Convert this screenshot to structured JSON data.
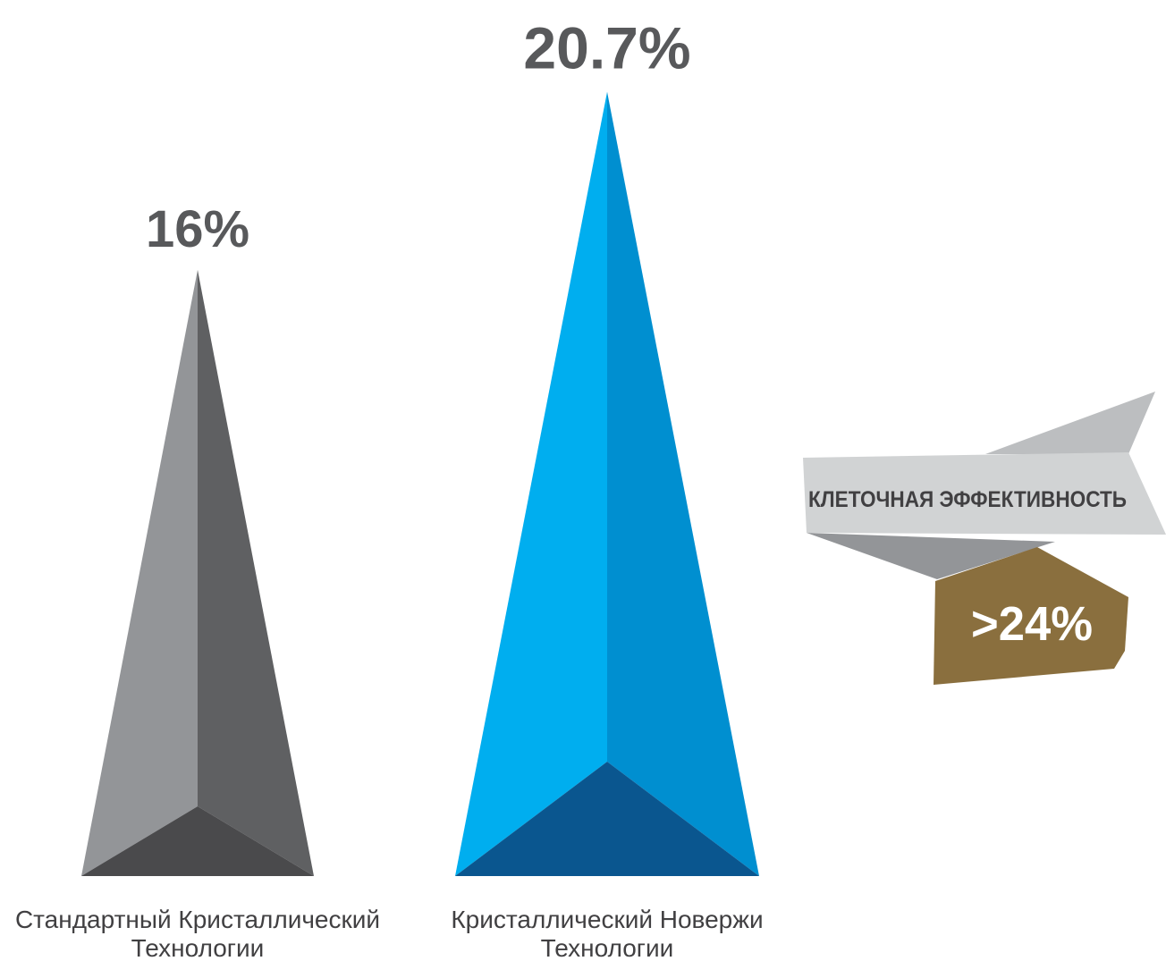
{
  "chart_data": {
    "type": "bar",
    "categories": [
      [
        "Стандартный Кристаллический",
        "Технологии"
      ],
      [
        "Кристаллический Новержи",
        "Технологии"
      ]
    ],
    "values": [
      16,
      20.7
    ],
    "value_labels": [
      "16%",
      "20.7%"
    ],
    "unit": "%",
    "ylim": [
      0,
      21
    ],
    "grid": false,
    "colors": {
      "bar1_light": "#939598",
      "bar1_dark": "#5f6062",
      "bar1_base": "#4a4a4c",
      "bar2_light": "#00aeef",
      "bar2_dark": "#008fd0",
      "bar2_base": "#0a568f"
    }
  },
  "callout": {
    "label": "КЛЕТОЧНАЯ ЭФФЕКТИВНОСТЬ",
    "value": ">24%",
    "colors": {
      "ribbon_front": "#d1d3d4",
      "ribbon_back": "#bcbec0",
      "ribbon_fold": "#939598",
      "badge": "#8a6f3e"
    }
  }
}
